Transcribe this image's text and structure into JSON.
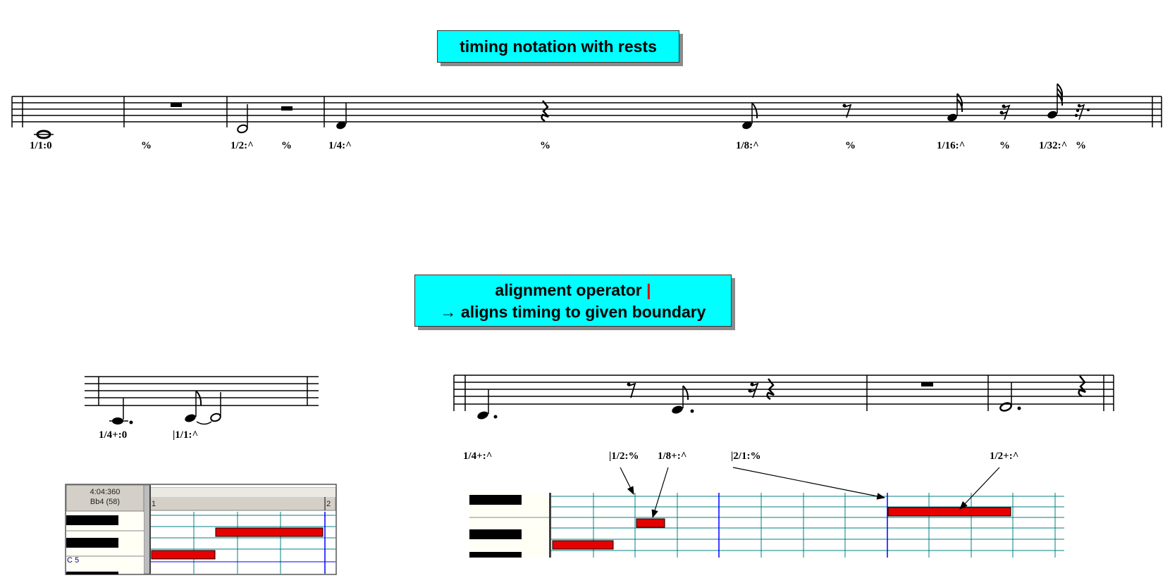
{
  "callouts": {
    "top": "timing notation with rests",
    "bottom_line1": "alignment operator",
    "bottom_pipe": "|",
    "bottom_line2": "→ aligns timing to given boundary"
  },
  "top_staff_labels": [
    "1/1:0",
    "%",
    "1/2:^",
    "%",
    "1/4:^",
    "%",
    "1/8:^",
    "%",
    "1/16:^",
    "%",
    "1/32:^",
    "%"
  ],
  "small_staff_labels": [
    "1/4+:0",
    "|1/1:^"
  ],
  "big_staff_labels": [
    "1/4+:^",
    "|1/2:%",
    "1/8+:^",
    "|2/1:%",
    "1/2+:^"
  ],
  "small_roll": {
    "position": "4:04:360",
    "pitch": "Bb4 (58)",
    "bar_start": "1",
    "bar_end": "2",
    "key_label": "C 5"
  },
  "colors": {
    "callout_bg": "#00ffff",
    "note_bar": "#e60000",
    "grid_line": "#008080",
    "bar_line": "#0000ff"
  }
}
